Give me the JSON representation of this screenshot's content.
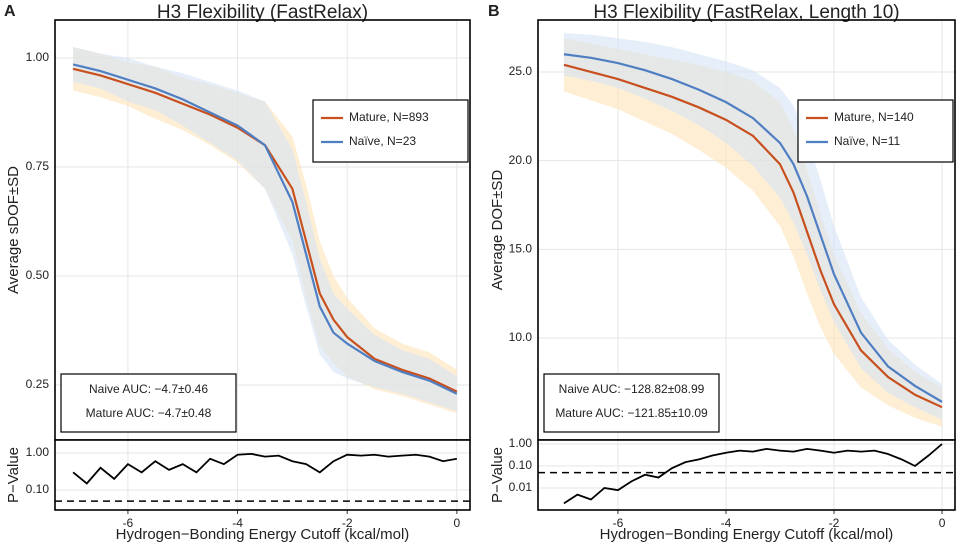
{
  "chart_data": [
    {
      "type": "line",
      "panel_label": "A",
      "title": "H3 Flexibility (FastRelax)",
      "ylabel": "Average sDOF±SD",
      "x": [
        -7,
        -6.5,
        -6,
        -5.5,
        -5,
        -4.5,
        -4,
        -3.5,
        -3,
        -2.75,
        -2.5,
        -2.25,
        -2,
        -1.5,
        -1,
        -0.5,
        0
      ],
      "xlim": [
        -7.33,
        0.24
      ],
      "ylim": [
        0.124,
        1.087
      ],
      "yticks": [
        {
          "value": 1,
          "label": "1.00"
        },
        {
          "value": 0.75,
          "label": "0.75"
        },
        {
          "value": 0.5,
          "label": "0.50"
        },
        {
          "value": 0.25,
          "label": "0.25"
        }
      ],
      "grid": true,
      "legend": "upper right",
      "series": [
        {
          "name": "Mature, N=893",
          "color": "#c8501e",
          "band_color": "#fde3b8",
          "values": [
            0.975,
            0.96,
            0.94,
            0.92,
            0.895,
            0.87,
            0.84,
            0.8,
            0.7,
            0.58,
            0.46,
            0.4,
            0.36,
            0.31,
            0.285,
            0.265,
            0.235
          ],
          "sd": [
            0.05,
            0.05,
            0.05,
            0.06,
            0.06,
            0.07,
            0.08,
            0.1,
            0.12,
            0.13,
            0.12,
            0.1,
            0.09,
            0.07,
            0.06,
            0.06,
            0.05
          ]
        },
        {
          "name": "Naïve, N=23",
          "color": "#4f7fc2",
          "band_color": "#d6e5f5",
          "values": [
            0.985,
            0.97,
            0.95,
            0.93,
            0.905,
            0.875,
            0.845,
            0.8,
            0.67,
            0.55,
            0.43,
            0.37,
            0.345,
            0.305,
            0.28,
            0.26,
            0.23
          ],
          "sd": [
            0.04,
            0.04,
            0.05,
            0.05,
            0.06,
            0.07,
            0.08,
            0.1,
            0.12,
            0.12,
            0.11,
            0.09,
            0.08,
            0.06,
            0.05,
            0.05,
            0.04
          ]
        }
      ],
      "annotations": [
        "Naive AUC: −4.7±0.46",
        "Mature AUC: −4.7±0.48"
      ]
    },
    {
      "type": "line",
      "ylabel": "P−Value",
      "xlabel": "Hydrogen−Bonding Energy Cutoff (kcal/mol)",
      "log_scale": true,
      "x": [
        -7,
        -6.75,
        -6.5,
        -6.25,
        -6,
        -5.75,
        -5.5,
        -5.25,
        -5,
        -4.75,
        -4.5,
        -4.25,
        -4,
        -3.75,
        -3.5,
        -3.25,
        -3,
        -2.75,
        -2.5,
        -2.25,
        -2,
        -1.75,
        -1.5,
        -1.25,
        -1,
        -0.75,
        -0.5,
        -0.25,
        0
      ],
      "values": [
        0.3,
        0.15,
        0.4,
        0.2,
        0.5,
        0.3,
        0.6,
        0.35,
        0.5,
        0.3,
        0.7,
        0.5,
        0.9,
        0.95,
        0.8,
        0.85,
        0.6,
        0.5,
        0.3,
        0.6,
        0.9,
        0.85,
        0.9,
        0.8,
        0.85,
        0.9,
        0.8,
        0.6,
        0.7
      ],
      "color": "#000000",
      "reference_line": 0.05,
      "xlim": [
        -7.33,
        0.24
      ],
      "xticks": [
        -6,
        -4,
        -2,
        0
      ],
      "ylim": [
        0.0288,
        2.25
      ],
      "yticks": [
        {
          "value": 1,
          "label": "1.00"
        },
        {
          "value": 0.1,
          "label": "0.10"
        }
      ],
      "grid": true
    },
    {
      "type": "line",
      "panel_label": "B",
      "title": "H3 Flexibility (FastRelax, Length 10)",
      "ylabel": "Average DOF±SD",
      "x": [
        -7,
        -6.5,
        -6,
        -5.5,
        -5,
        -4.5,
        -4,
        -3.5,
        -3,
        -2.75,
        -2.5,
        -2.25,
        -2,
        -1.5,
        -1,
        -0.5,
        0
      ],
      "xlim": [
        -7.48,
        0.24
      ],
      "ylim": [
        4.25,
        27.93
      ],
      "yticks": [
        {
          "value": 25,
          "label": "25.0"
        },
        {
          "value": 20,
          "label": "20.0"
        },
        {
          "value": 15,
          "label": "15.0"
        },
        {
          "value": 10,
          "label": "10.0"
        }
      ],
      "grid": true,
      "legend": "upper right",
      "series": [
        {
          "name": "Mature, N=140",
          "color": "#c8501e",
          "band_color": "#fde3b8",
          "values": [
            25.4,
            25.0,
            24.6,
            24.1,
            23.6,
            23.0,
            22.3,
            21.4,
            19.8,
            18.2,
            16.0,
            13.8,
            11.9,
            9.3,
            7.8,
            6.8,
            6.1
          ],
          "sd": [
            1.5,
            1.6,
            1.7,
            1.9,
            2.1,
            2.4,
            2.7,
            3.1,
            3.5,
            3.6,
            3.5,
            3.2,
            2.8,
            2.1,
            1.6,
            1.3,
            1.1
          ]
        },
        {
          "name": "Naïve, N=11",
          "color": "#4f7fc2",
          "band_color": "#d6e5f5",
          "values": [
            26.0,
            25.8,
            25.5,
            25.1,
            24.6,
            24.0,
            23.3,
            22.4,
            21.0,
            19.8,
            18.0,
            15.8,
            13.6,
            10.3,
            8.4,
            7.3,
            6.4
          ],
          "sd": [
            1.2,
            1.3,
            1.4,
            1.6,
            1.8,
            2.0,
            2.3,
            2.7,
            3.1,
            3.3,
            3.3,
            3.1,
            2.7,
            2.0,
            1.5,
            1.2,
            1.0
          ]
        }
      ],
      "annotations": [
        "Naive AUC: −128.82±08.99",
        "Mature AUC: −121.85±10.09"
      ]
    },
    {
      "type": "line",
      "ylabel": "P−Value",
      "xlabel": "Hydrogen−Bonding Energy Cutoff (kcal/mol)",
      "log_scale": true,
      "x": [
        -7,
        -6.75,
        -6.5,
        -6.25,
        -6,
        -5.75,
        -5.5,
        -5.25,
        -5,
        -4.75,
        -4.5,
        -4.25,
        -4,
        -3.75,
        -3.5,
        -3.25,
        -3,
        -2.75,
        -2.5,
        -2.25,
        -2,
        -1.75,
        -1.5,
        -1.25,
        -1,
        -0.75,
        -0.5,
        -0.25,
        0
      ],
      "values": [
        0.002,
        0.005,
        0.003,
        0.01,
        0.008,
        0.02,
        0.04,
        0.03,
        0.08,
        0.15,
        0.2,
        0.3,
        0.4,
        0.5,
        0.45,
        0.6,
        0.5,
        0.45,
        0.6,
        0.5,
        0.4,
        0.5,
        0.45,
        0.5,
        0.35,
        0.2,
        0.1,
        0.3,
        1.0
      ],
      "color": "#000000",
      "reference_line": 0.05,
      "xlim": [
        -7.48,
        0.24
      ],
      "xticks": [
        -6,
        -4,
        -2,
        0
      ],
      "ylim": [
        0.001,
        1.52
      ],
      "yticks": [
        {
          "value": 1,
          "label": "1.00"
        },
        {
          "value": 0.1,
          "label": "0.10"
        },
        {
          "value": 0.01,
          "label": "0.01"
        }
      ],
      "grid": true
    }
  ]
}
